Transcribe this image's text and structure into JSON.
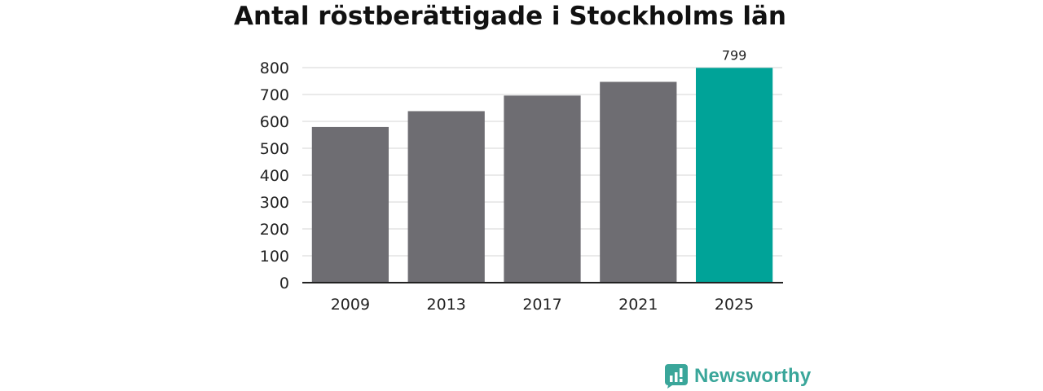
{
  "chart_data": {
    "type": "bar",
    "title": "Antal röstberättigade i Stockholms län",
    "xlabel": "",
    "ylabel": "",
    "categories": [
      "2009",
      "2013",
      "2017",
      "2021",
      "2025"
    ],
    "values": [
      579,
      638,
      696,
      747,
      799
    ],
    "ylim": [
      0,
      800
    ],
    "yticks": [
      0,
      100,
      200,
      300,
      400,
      500,
      600,
      700,
      800
    ],
    "grid": true,
    "legend": "none",
    "data_labels": [
      {
        "category": "2025",
        "text": "799"
      }
    ],
    "colors": {
      "default_bar": "#6e6d72",
      "highlight_bar": "#00a398",
      "highlight_category": "2025",
      "gridline": "#dddddd",
      "axis": "#222222"
    }
  },
  "brand": {
    "name": "Newsworthy",
    "icon": "newsworthy-logo-icon",
    "color": "#3aa69a"
  }
}
